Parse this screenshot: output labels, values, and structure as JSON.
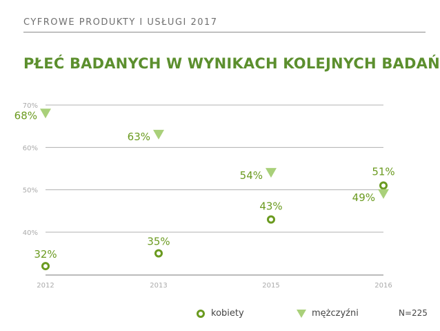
{
  "header": {
    "title": "CYFROWE PRODUKTY I USŁUGI 2017"
  },
  "colors": {
    "women": "#6a9a1f",
    "men": "#a9d07a",
    "title": "#5c8f2e",
    "grid": "#b0b0b0",
    "tick": "#aaaaaa"
  },
  "legend": {
    "women_label": "kobiety",
    "men_label": "mężczyźni"
  },
  "sample_note": "N=225",
  "chart_data": {
    "type": "scatter",
    "title": "PŁEĆ BADANYCH W WYNIKACH KOLEJNYCH BADAŃ",
    "categories": [
      "2012",
      "2013",
      "2015",
      "2016"
    ],
    "ylim": [
      30,
      70
    ],
    "yticks": [
      40,
      50,
      60,
      70
    ],
    "ytick_labels": [
      "40%",
      "50%",
      "60%",
      "70%"
    ],
    "grid": true,
    "legend_position": "bottom",
    "series": [
      {
        "key": "women",
        "name": "kobiety",
        "marker": "ring",
        "values": [
          32,
          35,
          43,
          51
        ],
        "labels": [
          "32%",
          "35%",
          "43%",
          "51%"
        ]
      },
      {
        "key": "men",
        "name": "mężczyźni",
        "marker": "triangle-down",
        "values": [
          68,
          63,
          54,
          49
        ],
        "labels": [
          "68%",
          "63%",
          "54%",
          "49%"
        ]
      }
    ]
  }
}
